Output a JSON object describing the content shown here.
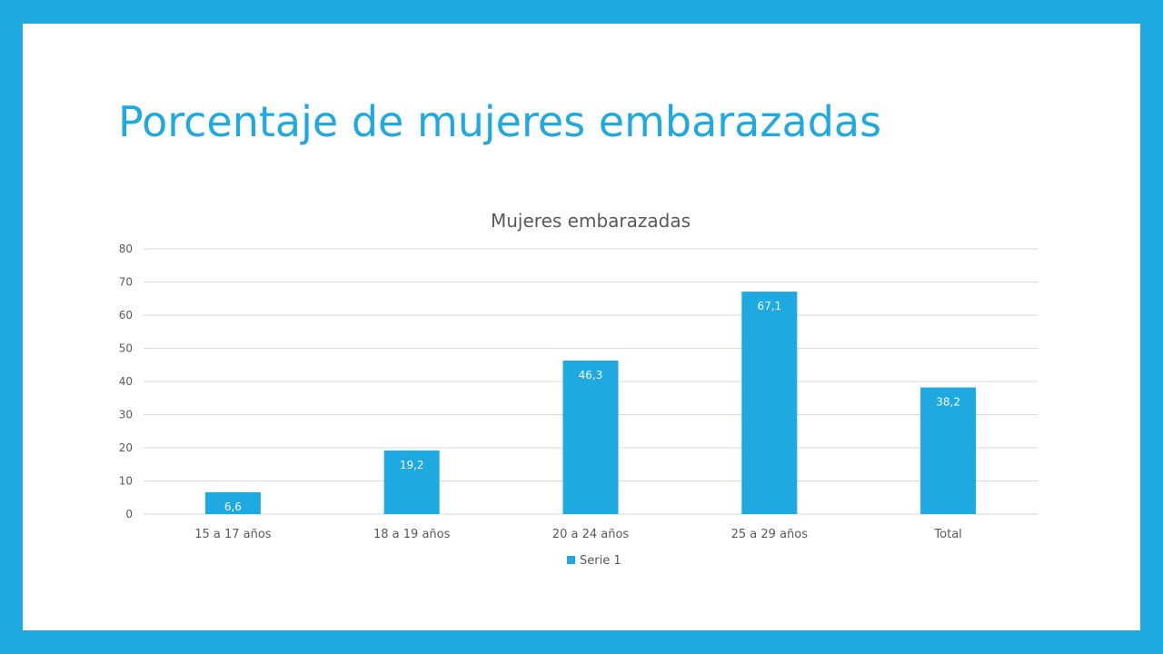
{
  "slide": {
    "title": "Porcentaje de mujeres embarazadas"
  },
  "colors": {
    "frame": "#1EAAE1",
    "bar": "#1EAAE1",
    "grid": "#D9D9D9",
    "text": "#595959"
  },
  "chart_data": {
    "type": "bar",
    "title": "Mujeres embarazadas",
    "categories": [
      "15 a 17 años",
      "18 a 19 años",
      "20 a 24 años",
      "25 a 29 años",
      "Total"
    ],
    "series": [
      {
        "name": "Serie 1",
        "values": [
          6.6,
          19.2,
          46.3,
          67.1,
          38.2
        ],
        "labels": [
          "6,6",
          "19,2",
          "46,3",
          "67,1",
          "38,2"
        ]
      }
    ],
    "ylim": [
      0,
      80
    ],
    "yticks": [
      0,
      10,
      20,
      30,
      40,
      50,
      60,
      70,
      80
    ],
    "ytick_labels": [
      "0",
      "10",
      "20",
      "30",
      "40",
      "50",
      "60",
      "70",
      "80"
    ],
    "xlabel": "",
    "ylabel": "",
    "grid": true,
    "legend": "bottom"
  }
}
